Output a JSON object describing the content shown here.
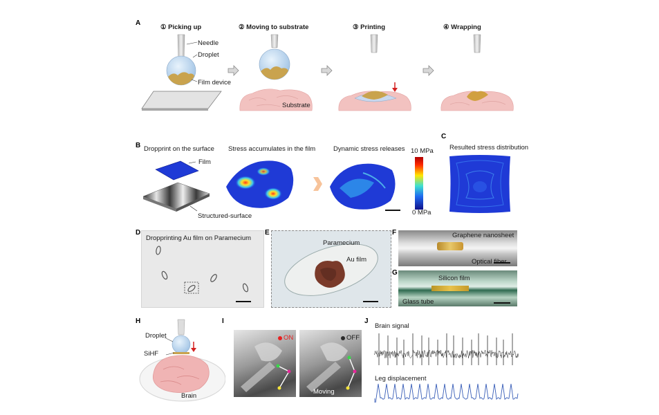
{
  "panels": {
    "A": {
      "label": "A",
      "steps": [
        "① Picking up",
        "② Moving to substrate",
        "③ Printing",
        "④ Wrapping"
      ],
      "needle": "Needle",
      "droplet": "Droplet",
      "film_device": "Film device",
      "substrate": "Substrate"
    },
    "B": {
      "label": "B",
      "titles": [
        "Dropprint on the surface",
        "Stress accumulates in the film",
        "Dynamic stress releases"
      ],
      "film": "Film",
      "structured_surface": "Structured-surface",
      "colorbar_max": "10 MPa",
      "colorbar_min": "0 MPa"
    },
    "C": {
      "label": "C",
      "title": "Resulted stress distribution"
    },
    "D": {
      "label": "D",
      "title": "Dropprinting Au film on Paramecium"
    },
    "E": {
      "label": "E",
      "paramecium": "Paramecium",
      "au_film": "Au film"
    },
    "F": {
      "label": "F",
      "graphene": "Graphene nanosheet",
      "optical_fiber": "Optical fiber"
    },
    "G": {
      "label": "G",
      "silicon_film": "Silicon film",
      "glass_tube": "Glass tube"
    },
    "H": {
      "label": "H",
      "droplet": "Droplet",
      "sihf": "SiHF",
      "brain": "Brain"
    },
    "I": {
      "label": "I",
      "on": "ON",
      "off": "OFF",
      "moving": "Moving"
    },
    "J": {
      "label": "J",
      "brain_signal": "Brain signal",
      "leg_displacement": "Leg displacement"
    }
  },
  "colors": {
    "arrow_red": "#d42020",
    "film_gold": "#c9a34e",
    "droplet_blue": "#b9d4ee",
    "tissue_pink": "#f2c2c0",
    "stress_blue": "#1f3ad6",
    "trace_blue": "#3a5fb8",
    "trace_dark": "#2a2a2a"
  }
}
